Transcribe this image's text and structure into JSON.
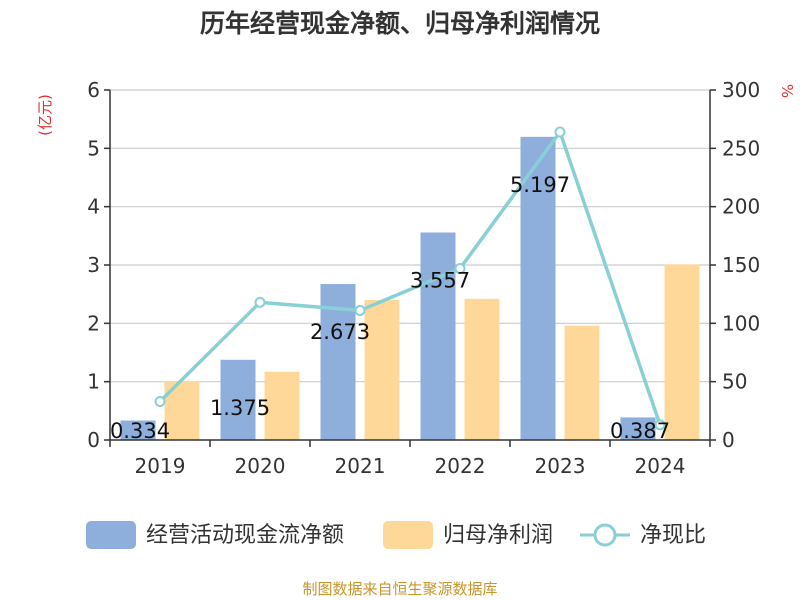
{
  "chart_data": {
    "type": "bar",
    "title": "历年经营现金净额、归母净利润情况",
    "categories": [
      "2019",
      "2020",
      "2021",
      "2022",
      "2023",
      "2024"
    ],
    "left_unit": "(亿元)",
    "right_unit": "%",
    "ylim_left": [
      0,
      6
    ],
    "ylim_right": [
      0,
      300
    ],
    "left_ticks": [
      "0",
      "1",
      "2",
      "3",
      "4",
      "5",
      "6"
    ],
    "right_ticks": [
      "0",
      "50",
      "100",
      "150",
      "200",
      "250",
      "300"
    ],
    "grid": true,
    "legend_position": "bottom",
    "series": [
      {
        "name": "经营活动现金流净额",
        "type": "bar",
        "axis": "left",
        "color": "#8eaedc",
        "values": [
          0.334,
          1.375,
          2.673,
          3.557,
          5.197,
          0.387
        ],
        "labels": [
          "0.334",
          "1.375",
          "2.673",
          "3.557",
          "5.197",
          "0.387"
        ]
      },
      {
        "name": "归母净利润",
        "type": "bar",
        "axis": "left",
        "color": "#fdd898",
        "values": [
          1.01,
          1.17,
          2.4,
          2.42,
          1.96,
          3.01
        ]
      },
      {
        "name": "净现比",
        "type": "line",
        "axis": "right",
        "color": "#89d0d6",
        "values": [
          33,
          118,
          111,
          147,
          264,
          13
        ]
      }
    ]
  },
  "footer": {
    "source": "制图数据来自恒生聚源数据库"
  }
}
